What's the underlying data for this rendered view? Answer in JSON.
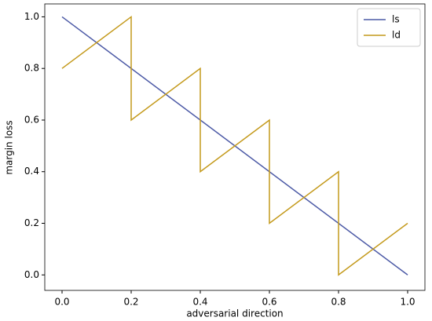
{
  "chart_data": {
    "type": "line",
    "xlabel": "adversarial direction",
    "ylabel": "margin loss",
    "series": [
      {
        "name": "ls",
        "color": "#4c5aa6",
        "x": [
          0.0,
          1.0
        ],
        "values": [
          1.0,
          0.0
        ]
      },
      {
        "name": "ld",
        "color": "#c49a1c",
        "x": [
          0.0,
          0.2,
          0.2,
          0.4,
          0.4,
          0.6,
          0.6,
          0.8,
          0.8,
          1.0
        ],
        "values": [
          0.8,
          1.0,
          0.6,
          0.8,
          0.4,
          0.6,
          0.2,
          0.4,
          0.0,
          0.2
        ]
      }
    ],
    "xlim": [
      -0.05,
      1.05
    ],
    "ylim": [
      -0.06,
      1.05
    ],
    "xticks": [
      {
        "value": 0,
        "label": "0.0"
      },
      {
        "value": 0.2,
        "label": "0.2"
      },
      {
        "value": 0.4,
        "label": "0.4"
      },
      {
        "value": 0.6,
        "label": "0.6"
      },
      {
        "value": 0.8,
        "label": "0.8"
      },
      {
        "value": 1,
        "label": "1.0"
      }
    ],
    "yticks": [
      {
        "value": 0,
        "label": "0.0"
      },
      {
        "value": 0.2,
        "label": "0.2"
      },
      {
        "value": 0.4,
        "label": "0.4"
      },
      {
        "value": 0.6,
        "label": "0.6"
      },
      {
        "value": 0.8,
        "label": "0.8"
      },
      {
        "value": 1,
        "label": "1.0"
      }
    ],
    "legend": "upper right",
    "grid": false
  }
}
